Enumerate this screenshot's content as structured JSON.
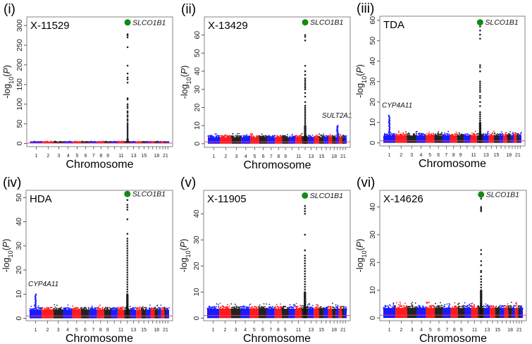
{
  "colors": {
    "chr_cycle": [
      "#1a1aff",
      "#ff1a1a",
      "#222222"
    ],
    "lead": "#138a13",
    "threshold": "#e0407a",
    "frame": "#9a9a9a"
  },
  "chart_data": {
    "type": "scatter",
    "subtype": "manhattan",
    "shared": {
      "xlabel": "Chromosome",
      "ylabel": {
        "prefix": "-log",
        "sub": "10",
        "open": "(",
        "var": "P",
        "close": ")"
      },
      "chromosomes": [
        1,
        2,
        3,
        4,
        5,
        6,
        7,
        8,
        9,
        10,
        11,
        12,
        13,
        14,
        15,
        16,
        17,
        18,
        19,
        20,
        21,
        22
      ],
      "xtick_labels": [
        "1",
        "2",
        "3",
        "4",
        "5",
        "6",
        "7",
        "8",
        "9",
        "11",
        "13",
        "15",
        "18",
        "21"
      ],
      "threshold": 1,
      "background_max": 4.5
    },
    "panels": [
      {
        "label": "(i)",
        "title": "X-11529",
        "ylim": [
          -8,
          322
        ],
        "yticks": [
          0,
          50,
          100,
          150,
          200,
          250,
          300
        ],
        "lead": {
          "gene": "SLCO1B1",
          "chr": 12,
          "value": 308
        },
        "peak_values": [
          278,
          275,
          270,
          245,
          198,
          178,
          168,
          163,
          155,
          115,
          112,
          100,
          95,
          90,
          82,
          78,
          72,
          68,
          62,
          58,
          52,
          48,
          44,
          40,
          36,
          32,
          28,
          24,
          20,
          16,
          12,
          8
        ],
        "secondary": []
      },
      {
        "label": "(ii)",
        "title": "X-13429",
        "ylim": [
          -2,
          70
        ],
        "yticks": [
          0,
          10,
          20,
          30,
          40,
          50,
          60
        ],
        "lead": {
          "gene": "SLCO1B1",
          "chr": 12,
          "value": 67
        },
        "peak_values": [
          60,
          59,
          57,
          43,
          40,
          38,
          36,
          35,
          34,
          33,
          32,
          31,
          30,
          28,
          26,
          23,
          21,
          20,
          19,
          18,
          17,
          16,
          15,
          14,
          13,
          12,
          11,
          10,
          9,
          8,
          7,
          6
        ],
        "secondary": [
          {
            "gene": "SULT2A1",
            "chr": 19,
            "value": 10
          }
        ]
      },
      {
        "label": "(iii)",
        "title": "TDA",
        "ylim": [
          -1.5,
          62
        ],
        "yticks": [
          0,
          10,
          20,
          30,
          40,
          50,
          60
        ],
        "lead": {
          "gene": "SLCO1B1",
          "chr": 12,
          "value": 59
        },
        "peak_values": [
          57,
          55,
          53,
          51,
          38,
          37,
          35,
          30,
          29,
          28,
          27,
          26,
          25,
          23,
          22,
          20,
          18,
          15,
          14,
          13,
          12,
          11,
          10,
          9,
          8,
          7,
          6
        ],
        "secondary": [
          {
            "gene": "CYP4A11",
            "chr": 1,
            "value": 13.5
          }
        ]
      },
      {
        "label": "(iv)",
        "title": "HDA",
        "ylim": [
          -1,
          53
        ],
        "yticks": [
          0,
          10,
          20,
          30,
          40,
          50
        ],
        "lead": {
          "gene": "SLCO1B1",
          "chr": 12,
          "value": 51.5
        },
        "peak_values": [
          49,
          47,
          46,
          45,
          41,
          35,
          33,
          32,
          31,
          30,
          29,
          28,
          27,
          26,
          25,
          24,
          23,
          22,
          21,
          20,
          19,
          18,
          17,
          16,
          15,
          14,
          13,
          12,
          11,
          10,
          9,
          8,
          7,
          6
        ],
        "secondary": [
          {
            "gene": "CYP4A11",
            "chr": 1,
            "value": 10
          }
        ]
      },
      {
        "label": "(v)",
        "title": "X-11905",
        "ylim": [
          -1,
          49
        ],
        "yticks": [
          0,
          10,
          20,
          30,
          40
        ],
        "lead": {
          "gene": "SLCO1B1",
          "chr": 12,
          "value": 47
        },
        "peak_values": [
          43,
          42,
          41,
          40,
          32,
          26,
          24,
          23,
          22,
          21,
          20,
          19,
          18,
          17,
          16,
          15,
          14,
          13,
          12,
          11,
          10,
          9,
          8,
          7,
          6
        ],
        "secondary": []
      },
      {
        "label": "(vi)",
        "title": "X-14626",
        "ylim": [
          -1,
          46
        ],
        "yticks": [
          0,
          10,
          20,
          30,
          40
        ],
        "lead": {
          "gene": "SLCO1B1",
          "chr": 12,
          "value": 44.5
        },
        "peak_values": [
          43,
          40,
          39.5,
          39,
          38.5,
          24.5,
          23,
          20.5,
          19,
          17,
          16.5,
          15,
          14,
          13,
          12,
          11,
          10,
          9,
          8,
          7,
          6
        ],
        "secondary": []
      }
    ]
  }
}
